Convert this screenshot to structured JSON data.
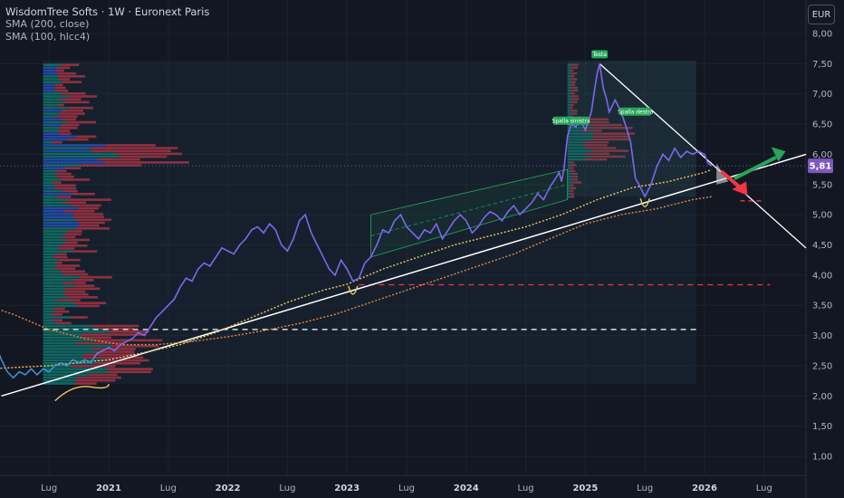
{
  "legend": {
    "title": "WisdomTree Softs · 1W · Euronext Paris",
    "indicator1": "SMA (200, close)",
    "indicator2": "SMA (100, hlcc4)"
  },
  "currency_button": "EUR",
  "price_tag": "5,81",
  "colors": {
    "background": "#131722",
    "price_line": "#7b68ee",
    "price_line_early": "#4a90d9",
    "sma200": "#f0c75e",
    "sma100": "#e08a3c",
    "trendline": "#ffffff",
    "support_red": "#f23645",
    "vp_up": "#089981",
    "vp_down": "#f23645",
    "vp_blue": "#2962ff",
    "arrow_green": "#26a65b",
    "arrow_red": "#f23645",
    "tag_bg": "#7e57c2"
  },
  "chart_data": {
    "type": "line",
    "x_ticks": [
      "Lug",
      "2021",
      "Lug",
      "2022",
      "Lug",
      "2023",
      "Lug",
      "2024",
      "Lug",
      "2025",
      "Lug",
      "2026",
      "Lug"
    ],
    "y_ticks": [
      "8,00",
      "7,50",
      "7,00",
      "6,50",
      "6,00",
      "5,50",
      "5,00",
      "4,50",
      "4,00",
      "3,50",
      "3,00",
      "2,50",
      "2,00",
      "1,50",
      "1,00"
    ],
    "ylim": [
      0.75,
      8.3
    ],
    "xlim": [
      2020.0,
      2026.95
    ],
    "last_price": 5.81,
    "annotations": [
      "Spalla sinistra",
      "Testa",
      "Spalla destra"
    ],
    "series": [
      {
        "points": [
          [
            2020.0,
            2.95
          ],
          [
            2020.05,
            2.85
          ],
          [
            2020.1,
            2.6
          ],
          [
            2020.15,
            2.4
          ],
          [
            2020.2,
            2.3
          ],
          [
            2020.25,
            2.4
          ],
          [
            2020.3,
            2.35
          ],
          [
            2020.35,
            2.45
          ],
          [
            2020.4,
            2.35
          ],
          [
            2020.45,
            2.45
          ],
          [
            2020.5,
            2.4
          ],
          [
            2020.55,
            2.5
          ],
          [
            2020.6,
            2.55
          ],
          [
            2020.65,
            2.5
          ],
          [
            2020.7,
            2.6
          ],
          [
            2020.75,
            2.55
          ],
          [
            2020.8,
            2.6
          ],
          [
            2020.85,
            2.55
          ],
          [
            2020.9,
            2.7
          ],
          [
            2020.95,
            2.75
          ],
          [
            2021.0,
            2.8
          ],
          [
            2021.05,
            2.75
          ],
          [
            2021.1,
            2.85
          ],
          [
            2021.15,
            2.9
          ],
          [
            2021.2,
            2.95
          ],
          [
            2021.25,
            3.05
          ],
          [
            2021.3,
            3.0
          ],
          [
            2021.35,
            3.15
          ],
          [
            2021.4,
            3.3
          ],
          [
            2021.45,
            3.4
          ],
          [
            2021.5,
            3.5
          ],
          [
            2021.55,
            3.6
          ],
          [
            2021.6,
            3.8
          ],
          [
            2021.65,
            3.95
          ],
          [
            2021.7,
            3.9
          ],
          [
            2021.75,
            4.1
          ],
          [
            2021.8,
            4.2
          ],
          [
            2021.85,
            4.15
          ],
          [
            2021.9,
            4.3
          ],
          [
            2021.95,
            4.45
          ],
          [
            2022.0,
            4.4
          ],
          [
            2022.05,
            4.35
          ],
          [
            2022.1,
            4.5
          ],
          [
            2022.15,
            4.6
          ],
          [
            2022.2,
            4.75
          ],
          [
            2022.25,
            4.8
          ],
          [
            2022.3,
            4.7
          ],
          [
            2022.35,
            4.85
          ],
          [
            2022.4,
            4.75
          ],
          [
            2022.45,
            4.5
          ],
          [
            2022.5,
            4.4
          ],
          [
            2022.55,
            4.6
          ],
          [
            2022.6,
            4.9
          ],
          [
            2022.65,
            5.0
          ],
          [
            2022.7,
            4.7
          ],
          [
            2022.75,
            4.5
          ],
          [
            2022.8,
            4.3
          ],
          [
            2022.85,
            4.1
          ],
          [
            2022.9,
            4.0
          ],
          [
            2022.95,
            4.25
          ],
          [
            2023.0,
            4.1
          ],
          [
            2023.05,
            3.9
          ],
          [
            2023.1,
            3.95
          ],
          [
            2023.15,
            4.2
          ],
          [
            2023.2,
            4.3
          ],
          [
            2023.25,
            4.5
          ],
          [
            2023.3,
            4.75
          ],
          [
            2023.35,
            4.7
          ],
          [
            2023.4,
            4.9
          ],
          [
            2023.45,
            5.0
          ],
          [
            2023.5,
            4.8
          ],
          [
            2023.55,
            4.7
          ],
          [
            2023.6,
            4.6
          ],
          [
            2023.65,
            4.75
          ],
          [
            2023.7,
            4.7
          ],
          [
            2023.75,
            4.85
          ],
          [
            2023.8,
            4.6
          ],
          [
            2023.85,
            4.75
          ],
          [
            2023.9,
            4.9
          ],
          [
            2023.95,
            5.0
          ],
          [
            2024.0,
            4.9
          ],
          [
            2024.05,
            4.7
          ],
          [
            2024.1,
            4.8
          ],
          [
            2024.15,
            4.95
          ],
          [
            2024.2,
            5.05
          ],
          [
            2024.25,
            5.0
          ],
          [
            2024.3,
            4.9
          ],
          [
            2024.35,
            5.05
          ],
          [
            2024.4,
            5.15
          ],
          [
            2024.45,
            5.0
          ],
          [
            2024.5,
            5.1
          ],
          [
            2024.55,
            5.2
          ],
          [
            2024.6,
            5.35
          ],
          [
            2024.65,
            5.25
          ],
          [
            2024.7,
            5.45
          ],
          [
            2024.75,
            5.6
          ],
          [
            2024.78,
            5.7
          ],
          [
            2024.8,
            5.55
          ],
          [
            2024.82,
            5.75
          ],
          [
            2024.85,
            6.3
          ],
          [
            2024.88,
            6.5
          ],
          [
            2024.92,
            6.45
          ],
          [
            2024.95,
            6.6
          ],
          [
            2025.0,
            6.4
          ],
          [
            2025.05,
            6.7
          ],
          [
            2025.08,
            7.1
          ],
          [
            2025.1,
            7.35
          ],
          [
            2025.12,
            7.5
          ],
          [
            2025.15,
            7.1
          ],
          [
            2025.18,
            6.9
          ],
          [
            2025.2,
            6.7
          ],
          [
            2025.25,
            6.9
          ],
          [
            2025.3,
            6.7
          ],
          [
            2025.35,
            6.4
          ],
          [
            2025.38,
            6.2
          ],
          [
            2025.4,
            5.9
          ],
          [
            2025.42,
            5.6
          ],
          [
            2025.45,
            5.5
          ],
          [
            2025.5,
            5.3
          ],
          [
            2025.55,
            5.5
          ],
          [
            2025.6,
            5.8
          ],
          [
            2025.65,
            6.0
          ],
          [
            2025.7,
            5.9
          ],
          [
            2025.75,
            6.1
          ],
          [
            2025.8,
            5.95
          ],
          [
            2025.85,
            6.05
          ],
          [
            2025.9,
            6.0
          ],
          [
            2025.95,
            6.05
          ],
          [
            2026.0,
            6.0
          ],
          [
            2026.03,
            5.85
          ],
          [
            2026.06,
            5.81
          ]
        ]
      },
      {
        "name": "SMA (200, close)",
        "points": [
          [
            2020.0,
            2.45
          ],
          [
            2020.5,
            2.5
          ],
          [
            2021.0,
            2.6
          ],
          [
            2021.3,
            2.72
          ],
          [
            2021.6,
            2.85
          ],
          [
            2021.9,
            3.05
          ],
          [
            2022.2,
            3.3
          ],
          [
            2022.5,
            3.55
          ],
          [
            2022.8,
            3.75
          ],
          [
            2023.0,
            3.85
          ],
          [
            2023.3,
            4.1
          ],
          [
            2023.6,
            4.3
          ],
          [
            2023.9,
            4.5
          ],
          [
            2024.2,
            4.65
          ],
          [
            2024.5,
            4.8
          ],
          [
            2024.8,
            5.0
          ],
          [
            2025.1,
            5.25
          ],
          [
            2025.4,
            5.45
          ],
          [
            2025.7,
            5.55
          ],
          [
            2026.0,
            5.7
          ],
          [
            2026.06,
            5.75
          ]
        ]
      },
      {
        "name": "SMA (100, hlcc4)",
        "points": [
          [
            2019.9,
            3.55
          ],
          [
            2020.2,
            3.35
          ],
          [
            2020.5,
            3.1
          ],
          [
            2020.8,
            2.95
          ],
          [
            2021.1,
            2.85
          ],
          [
            2021.4,
            2.85
          ],
          [
            2021.7,
            2.9
          ],
          [
            2022.0,
            2.98
          ],
          [
            2022.3,
            3.08
          ],
          [
            2022.6,
            3.2
          ],
          [
            2022.9,
            3.35
          ],
          [
            2023.2,
            3.55
          ],
          [
            2023.5,
            3.75
          ],
          [
            2023.8,
            3.95
          ],
          [
            2024.1,
            4.15
          ],
          [
            2024.4,
            4.35
          ],
          [
            2024.7,
            4.6
          ],
          [
            2025.0,
            4.85
          ],
          [
            2025.3,
            5.0
          ],
          [
            2025.6,
            5.1
          ],
          [
            2025.9,
            5.25
          ],
          [
            2026.06,
            5.3
          ]
        ]
      }
    ]
  }
}
